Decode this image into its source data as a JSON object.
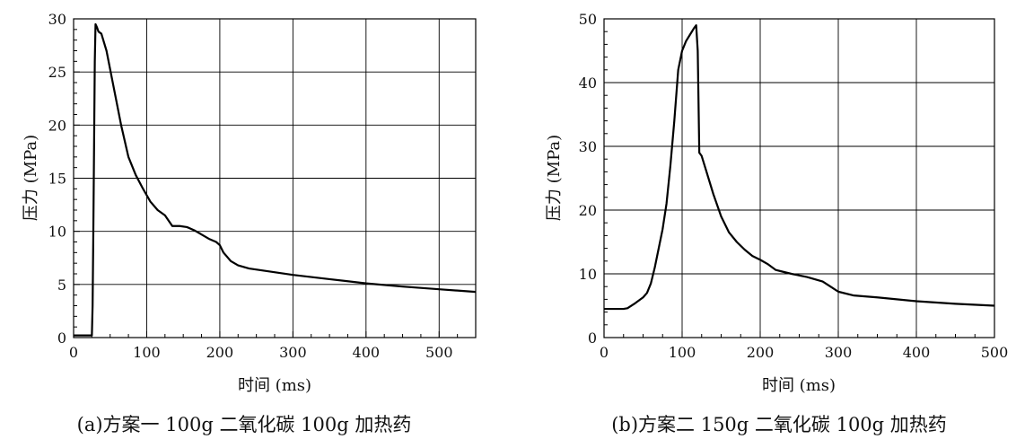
{
  "chart_data": [
    {
      "type": "line",
      "xlabel": "时间 (ms)",
      "ylabel": "压力 (MPa)",
      "caption": "(a)方案一 100g 二氧化碳  100g 加热药",
      "xlim": [
        0,
        550
      ],
      "ylim": [
        0,
        30
      ],
      "xticks": [
        0,
        100,
        200,
        300,
        400,
        500
      ],
      "yticks": [
        0,
        5,
        10,
        15,
        20,
        25,
        30
      ],
      "grid": true,
      "color": "#000000",
      "series": [
        {
          "x": [
            0,
            25,
            26,
            27,
            28,
            29,
            30,
            32,
            34,
            38,
            45,
            55,
            65,
            75,
            85,
            95,
            105,
            115,
            125,
            135,
            145,
            155,
            165,
            175,
            185,
            195,
            200,
            205,
            215,
            225,
            240,
            260,
            300,
            350,
            400,
            450,
            500,
            550
          ],
          "y": [
            0.2,
            0.2,
            3,
            10,
            18,
            26,
            29.5,
            29.2,
            28.8,
            28.6,
            27,
            23.5,
            20.0,
            17.0,
            15.3,
            14.0,
            12.8,
            12.0,
            11.5,
            10.5,
            10.5,
            10.4,
            10.1,
            9.7,
            9.3,
            9.0,
            8.7,
            8.0,
            7.2,
            6.8,
            6.5,
            6.3,
            5.9,
            5.5,
            5.1,
            4.8,
            4.55,
            4.3
          ]
        }
      ]
    },
    {
      "type": "line",
      "xlabel": "时间 (ms)",
      "ylabel": "压力 (MPa)",
      "caption": "(b)方案二 150g 二氧化碳  100g 加热药",
      "xlim": [
        0,
        500
      ],
      "ylim": [
        0,
        50
      ],
      "xticks": [
        0,
        100,
        200,
        300,
        400,
        500
      ],
      "yticks": [
        0,
        10,
        20,
        30,
        40,
        50
      ],
      "grid": true,
      "color": "#000000",
      "series": [
        {
          "x": [
            0,
            25,
            30,
            40,
            50,
            55,
            60,
            65,
            70,
            75,
            80,
            85,
            90,
            95,
            100,
            105,
            110,
            115,
            118,
            120,
            122,
            125,
            130,
            140,
            150,
            160,
            170,
            180,
            190,
            200,
            210,
            220,
            230,
            240,
            260,
            280,
            290,
            300,
            320,
            350,
            400,
            450,
            500
          ],
          "y": [
            4.5,
            4.5,
            4.6,
            5.4,
            6.3,
            7.0,
            8.5,
            11.0,
            14.0,
            17.0,
            21.0,
            27.0,
            34.0,
            42.0,
            45.0,
            46.5,
            47.5,
            48.5,
            49.0,
            45.0,
            29.0,
            28.5,
            26.5,
            22.5,
            19.0,
            16.5,
            15.0,
            13.8,
            12.8,
            12.2,
            11.5,
            10.6,
            10.3,
            10.0,
            9.5,
            8.8,
            8.0,
            7.2,
            6.6,
            6.3,
            5.7,
            5.3,
            5.0
          ]
        }
      ]
    }
  ]
}
